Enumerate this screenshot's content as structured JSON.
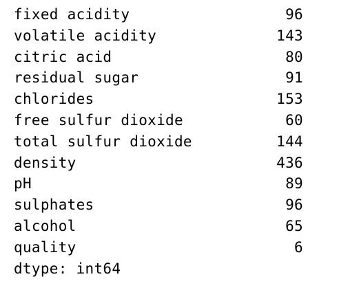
{
  "series_output": {
    "rows": [
      {
        "label": "fixed acidity",
        "value": "96"
      },
      {
        "label": "volatile acidity",
        "value": "143"
      },
      {
        "label": "citric acid",
        "value": "80"
      },
      {
        "label": "residual sugar",
        "value": "91"
      },
      {
        "label": "chlorides",
        "value": "153"
      },
      {
        "label": "free sulfur dioxide",
        "value": "60"
      },
      {
        "label": "total sulfur dioxide",
        "value": "144"
      },
      {
        "label": "density",
        "value": "436"
      },
      {
        "label": "pH",
        "value": "89"
      },
      {
        "label": "sulphates",
        "value": "96"
      },
      {
        "label": "alcohol",
        "value": "65"
      },
      {
        "label": "quality",
        "value": "6"
      }
    ],
    "dtype_line": "dtype: int64"
  }
}
